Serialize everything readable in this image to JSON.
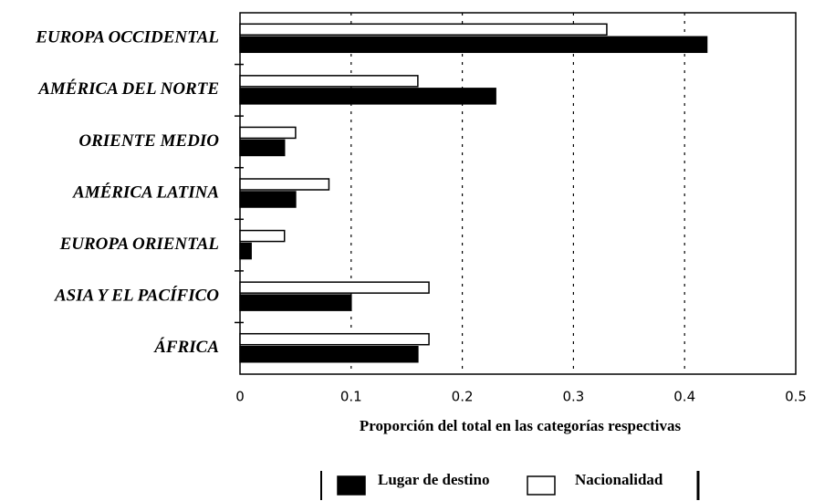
{
  "chart_data": {
    "type": "bar",
    "orientation": "horizontal",
    "x_label": "Proporción del total en las categorías respectivas",
    "categories": [
      "EUROPA OCCIDENTAL",
      "AMÉRICA DEL NORTE",
      "ORIENTE MEDIO",
      "AMÉRICA LATINA",
      "EUROPA ORIENTAL",
      "ASIA Y EL PACÍFICO",
      "ÁFRICA"
    ],
    "series": [
      {
        "name": "Lugar de destino",
        "color": "#000000",
        "values": [
          0.42,
          0.23,
          0.04,
          0.05,
          0.01,
          0.1,
          0.16
        ]
      },
      {
        "name": "Nacionalidad",
        "color": "#ffffff",
        "values": [
          0.33,
          0.16,
          0.05,
          0.08,
          0.04,
          0.17,
          0.17
        ]
      }
    ],
    "xlim": [
      0,
      0.5
    ],
    "xticks": [
      0,
      0.1,
      0.2,
      0.3,
      0.4,
      0.5
    ],
    "grid": true
  }
}
